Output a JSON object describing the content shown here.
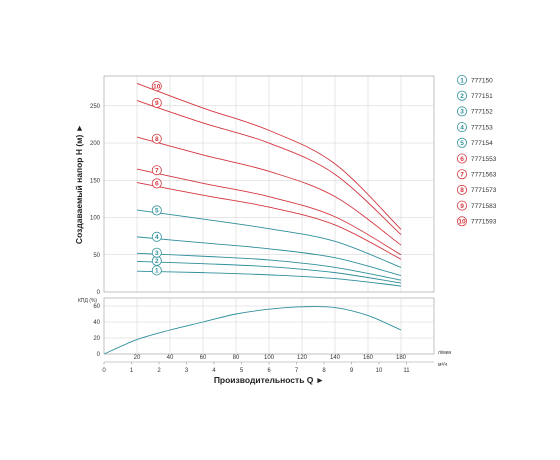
{
  "chart_data": [
    {
      "type": "line",
      "name": "head",
      "ylabel": "Создаваемый напор H (м) ►",
      "ylim": [
        0,
        290
      ],
      "yticks": [
        0,
        50,
        100,
        150,
        200,
        250
      ],
      "xlim": [
        0,
        200
      ],
      "grid": true,
      "legend": "right",
      "colors": {
        "low": "#2e8f9a",
        "high": "#d4373f"
      },
      "series": [
        {
          "name": "777150",
          "badge": "1",
          "color_group": "low",
          "x": [
            20,
            60,
            100,
            140,
            180
          ],
          "y": [
            28,
            26,
            23,
            18,
            8
          ]
        },
        {
          "name": "777151",
          "badge": "2",
          "color_group": "low",
          "x": [
            20,
            60,
            100,
            140,
            180
          ],
          "y": [
            41,
            38,
            34,
            26,
            12
          ]
        },
        {
          "name": "777152",
          "badge": "3",
          "color_group": "low",
          "x": [
            20,
            60,
            100,
            140,
            180
          ],
          "y": [
            52,
            48,
            43,
            33,
            16
          ]
        },
        {
          "name": "777153",
          "badge": "4",
          "color_group": "low",
          "x": [
            20,
            60,
            100,
            140,
            180
          ],
          "y": [
            74,
            66,
            58,
            46,
            22
          ]
        },
        {
          "name": "777154",
          "badge": "5",
          "color_group": "low",
          "x": [
            20,
            60,
            100,
            140,
            180
          ],
          "y": [
            110,
            98,
            85,
            68,
            33
          ]
        },
        {
          "name": "7771553",
          "badge": "6",
          "color_group": "high",
          "x": [
            20,
            60,
            100,
            140,
            180
          ],
          "y": [
            147,
            130,
            114,
            90,
            44
          ]
        },
        {
          "name": "7771563",
          "badge": "7",
          "color_group": "high",
          "x": [
            20,
            60,
            100,
            140,
            180
          ],
          "y": [
            165,
            146,
            128,
            101,
            50
          ]
        },
        {
          "name": "7771573",
          "badge": "8",
          "color_group": "high",
          "x": [
            20,
            60,
            100,
            140,
            180
          ],
          "y": [
            208,
            184,
            162,
            128,
            63
          ]
        },
        {
          "name": "7771583",
          "badge": "9",
          "color_group": "high",
          "x": [
            20,
            60,
            100,
            140,
            180
          ],
          "y": [
            257,
            227,
            200,
            158,
            77
          ]
        },
        {
          "name": "7771593",
          "badge": "10",
          "color_group": "high",
          "x": [
            20,
            60,
            100,
            140,
            180
          ],
          "y": [
            280,
            247,
            217,
            172,
            84
          ]
        }
      ]
    },
    {
      "type": "line",
      "name": "efficiency",
      "ylabel": "КПД (%)",
      "ylim": [
        0,
        70
      ],
      "yticks": [
        0,
        20,
        40,
        60
      ],
      "xlim": [
        0,
        200
      ],
      "grid": true,
      "series": [
        {
          "x": [
            0,
            20,
            40,
            60,
            80,
            100,
            120,
            140,
            160,
            180
          ],
          "y": [
            0,
            18,
            30,
            40,
            50,
            56,
            59,
            58,
            48,
            30
          ]
        }
      ]
    }
  ],
  "x_axis": {
    "title": "Производительность Q ►",
    "lmin_ticks": [
      20,
      40,
      60,
      80,
      100,
      120,
      140,
      160,
      180
    ],
    "lmin_unit": "л/мин",
    "m3h_ticks": [
      0,
      1,
      2,
      3,
      4,
      5,
      6,
      7,
      8,
      9,
      10,
      11
    ],
    "m3h_unit": "м³/ч"
  }
}
